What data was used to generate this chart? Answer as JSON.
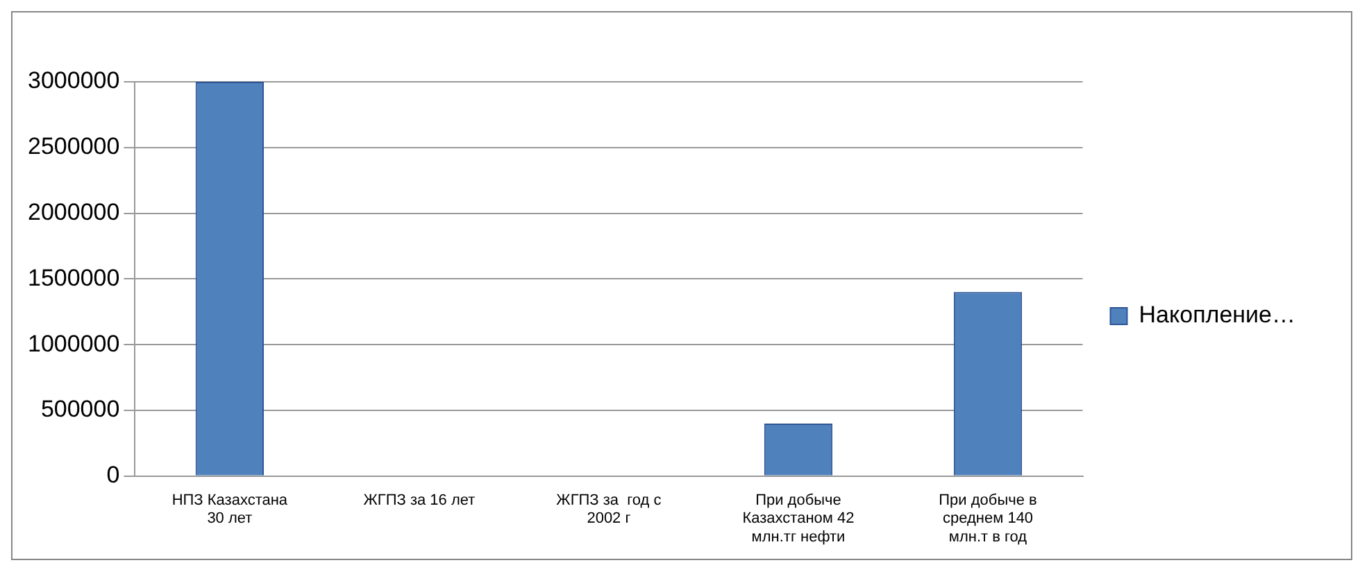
{
  "chart_data": {
    "type": "bar",
    "categories": [
      "НПЗ Казахстана 30 лет",
      "ЖГПЗ за 16 лет",
      "ЖГПЗ за  год с 2002 г",
      "При добыче Казахстаном 42 млн.тг нефти",
      "При добыче в среднем 140 млн.т в год"
    ],
    "series": [
      {
        "name": "Накопление…",
        "color": "#4f81bd",
        "values": [
          3000000,
          0,
          0,
          400000,
          1400000
        ]
      }
    ],
    "ylim": [
      0,
      3000000
    ],
    "yticks": [
      0,
      500000,
      1000000,
      1500000,
      2000000,
      2500000,
      3000000
    ],
    "grid": "y",
    "legend": "right"
  }
}
